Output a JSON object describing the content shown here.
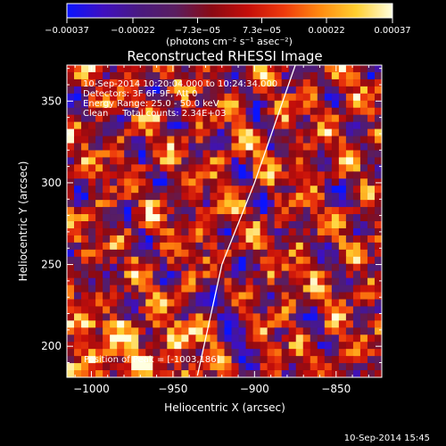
{
  "chart_data": {
    "type": "heatmap",
    "title": "Reconstructed RHESSI Image",
    "xlabel": "Heliocentric X (arcsec)",
    "ylabel": "Heliocentric Y (arcsec)",
    "xlim": [
      -1015,
      -822
    ],
    "ylim": [
      181,
      372
    ],
    "xticks": [
      -1000,
      -950,
      -900,
      -850
    ],
    "xtick_labels": [
      "−1000",
      "−950",
      "−900",
      "−850"
    ],
    "yticks": [
      200,
      250,
      300,
      350
    ],
    "ytick_labels": [
      "200",
      "250",
      "300",
      "350"
    ],
    "colorbar": {
      "range": [
        -0.00037,
        0.00037
      ],
      "ticks": [
        -0.00037,
        -0.00022,
        -7.3e-05,
        7.3e-05,
        0.00022,
        0.00037
      ],
      "tick_labels": [
        "−0.00037",
        "−0.00022",
        "−7.3e−05",
        "7.3e−05",
        "0.00022",
        "0.00037"
      ],
      "unit_label": "(photons cm⁻² s⁻¹ asec⁻²)",
      "colors": [
        "#0a14ff",
        "#3f10c0",
        "#4a1a80",
        "#5a1e60",
        "#8a0a14",
        "#c40e0a",
        "#ee3a0c",
        "#ff8a10",
        "#ffcf30",
        "#ffffe0"
      ]
    },
    "annotations": [
      "10-Sep-2014 10:20:04.000 to 10:24:34.000",
      "Detectors: 3F 6F 9F, Att 0",
      "Energy Range: 25.0 - 50.0 keV",
      "Clean     Total counts: 2.34E+03"
    ],
    "peak_label": "Position of Peak = [-1003,186]",
    "peak_position": [
      -1003,
      186
    ],
    "limb_curve": [
      [
        -935,
        182
      ],
      [
        -920,
        250
      ],
      [
        -900,
        300
      ],
      [
        -875,
        372
      ]
    ],
    "grid": false,
    "legend": "none"
  },
  "footer": {
    "timestamp": "10-Sep-2014 15:45"
  },
  "colors": {
    "background": "#000000",
    "text": "#ffffff",
    "limb": "#ffffff"
  }
}
